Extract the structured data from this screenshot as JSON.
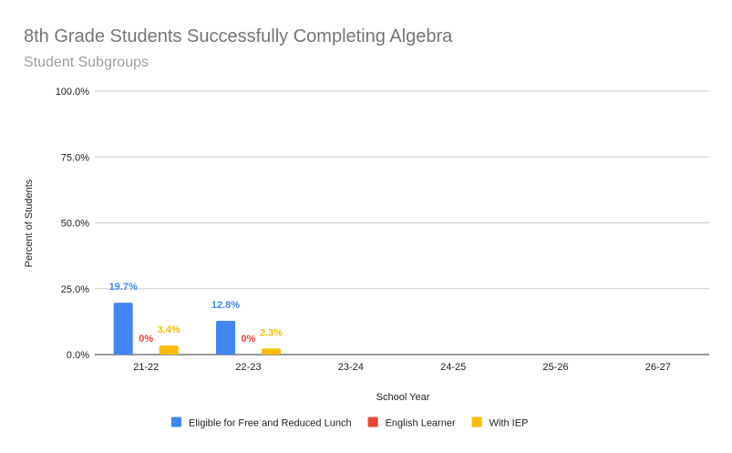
{
  "chart_data": {
    "type": "bar",
    "title": "8th Grade Students Successfully Completing Algebra",
    "subtitle": "Student Subgroups",
    "xlabel": "School Year",
    "ylabel": "Percent of Students",
    "categories": [
      "21-22",
      "22-23",
      "23-24",
      "24-25",
      "25-26",
      "26-27"
    ],
    "ylim": [
      0,
      100
    ],
    "y_ticks": [
      0,
      25,
      50,
      75,
      100
    ],
    "y_tick_labels": [
      "0.0%",
      "25.0%",
      "50.0%",
      "75.0%",
      "100.0%"
    ],
    "grid": true,
    "legend_position": "bottom",
    "series": [
      {
        "name": "Eligible for Free and Reduced Lunch",
        "color": "#4285f4",
        "values": [
          19.7,
          12.8,
          null,
          null,
          null,
          null
        ],
        "labels": [
          "19.7%",
          "12.8%",
          null,
          null,
          null,
          null
        ]
      },
      {
        "name": "English Learner",
        "color": "#ea4335",
        "values": [
          0,
          0,
          null,
          null,
          null,
          null
        ],
        "labels": [
          "0%",
          "0%",
          null,
          null,
          null,
          null
        ]
      },
      {
        "name": "With IEP",
        "color": "#fbbc04",
        "values": [
          3.4,
          2.3,
          null,
          null,
          null,
          null
        ],
        "labels": [
          "3.4%",
          "2.3%",
          null,
          null,
          null,
          null
        ]
      }
    ]
  }
}
